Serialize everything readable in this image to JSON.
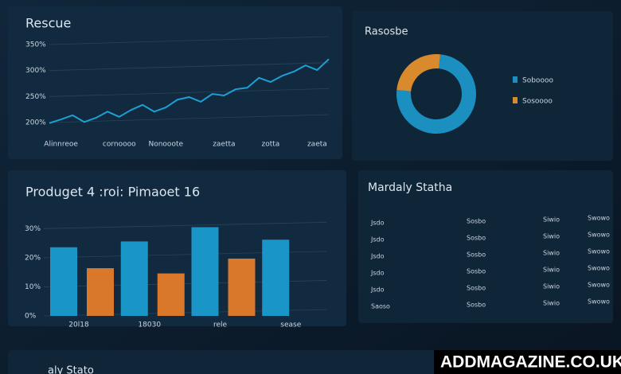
{
  "chart_data": [
    {
      "type": "line",
      "title": "Rescue",
      "color": "#1e9fd4",
      "grid": true,
      "x": [
        0,
        1,
        2,
        3,
        4,
        5,
        6,
        7,
        8,
        9,
        10,
        11,
        12,
        13,
        14,
        15,
        16,
        17,
        18,
        19,
        20,
        21,
        22,
        23,
        24
      ],
      "values": [
        199,
        206,
        214,
        201,
        209,
        221,
        211,
        224,
        234,
        221,
        229,
        244,
        249,
        240,
        255,
        252,
        264,
        267,
        286,
        278,
        290,
        298,
        310,
        301,
        322
      ],
      "xlim": [
        0,
        24
      ],
      "xticks": [
        {
          "value": 1,
          "label": "Alinnreoe"
        },
        {
          "value": 6,
          "label": "cornoooo"
        },
        {
          "value": 10,
          "label": "Nonooote"
        },
        {
          "value": 15,
          "label": "zaetta"
        },
        {
          "value": 19,
          "label": "zotta"
        },
        {
          "value": 23,
          "label": "zaeta"
        }
      ],
      "ylim": [
        200,
        350
      ],
      "yticks": [
        {
          "value": 200,
          "label": "200%"
        },
        {
          "value": 250,
          "label": "250%"
        },
        {
          "value": 300,
          "label": "300%"
        },
        {
          "value": 350,
          "label": "350%"
        }
      ]
    },
    {
      "type": "pie",
      "title": "Rasosbe",
      "categories": [
        "Soboooo",
        "Sosoooo"
      ],
      "values": [
        75,
        25
      ],
      "colors": [
        "#1a8fc0",
        "#d98a2c"
      ]
    },
    {
      "type": "bar",
      "title": "Produget 4 :roi: Pimaoet 16",
      "grid": true,
      "categories": [
        "20l18",
        "18030",
        "rele",
        "sease"
      ],
      "series": [
        {
          "color": "#1a95c8",
          "values": [
            23.6,
            25.6,
            30.5,
            26.2
          ]
        },
        {
          "color": "#d9782a",
          "values": [
            16.4,
            14.6,
            19.7,
            null
          ]
        }
      ],
      "ylim": [
        0,
        32
      ],
      "yticks": [
        {
          "value": 0,
          "label": "0%"
        },
        {
          "value": 10,
          "label": "10%"
        },
        {
          "value": 20,
          "label": "20%"
        },
        {
          "value": 30,
          "label": "30%"
        }
      ]
    }
  ],
  "table": {
    "title": "Mardaly Statha",
    "rows": [
      [
        "Jsdo",
        "Sosbo",
        "Siwio",
        "Swowo"
      ],
      [
        "Jsdo",
        "Sosbo",
        "Siwio",
        "Swowo"
      ],
      [
        "Jsdo",
        "Sosbo",
        "Siwio",
        "Swowo"
      ],
      [
        "Jsdo",
        "Sosbo",
        "Siwio",
        "Swowo"
      ],
      [
        "Jsdo",
        "Sosbo",
        "Siwio",
        "Swowo"
      ],
      [
        "Saoso",
        "Sosbo",
        "Siwio",
        "Swowo"
      ]
    ]
  },
  "footer_panel_title": "aly Stato",
  "watermark": "ADDMAGAZINE.CO.UK"
}
